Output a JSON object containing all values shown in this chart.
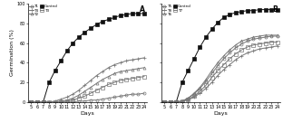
{
  "days": [
    5,
    6,
    7,
    8,
    9,
    10,
    11,
    12,
    13,
    14,
    15,
    16,
    17,
    18,
    19,
    20,
    21,
    22,
    23,
    24
  ],
  "panel_A": {
    "label": "A",
    "series_order": [
      "Control",
      "T4",
      "T2",
      "T3",
      "T1"
    ],
    "series": {
      "T1": [
        0,
        0,
        0,
        0,
        0,
        0,
        0,
        0,
        1,
        1,
        2,
        2,
        3,
        4,
        5,
        6,
        7,
        8,
        8,
        9
      ],
      "T4": [
        0,
        0,
        0,
        0,
        1,
        3,
        5,
        8,
        12,
        17,
        22,
        27,
        31,
        35,
        38,
        40,
        42,
        43,
        44,
        45
      ],
      "T2": [
        0,
        0,
        0,
        0,
        0,
        1,
        2,
        4,
        7,
        11,
        15,
        19,
        23,
        26,
        29,
        31,
        32,
        33,
        34,
        35
      ],
      "T3": [
        0,
        0,
        0,
        0,
        0,
        0,
        1,
        2,
        4,
        6,
        9,
        12,
        15,
        18,
        20,
        22,
        23,
        24,
        25,
        26
      ],
      "Control": [
        0,
        0,
        0,
        20,
        32,
        42,
        52,
        60,
        66,
        71,
        75,
        79,
        82,
        84,
        86,
        88,
        89,
        90,
        90,
        90
      ]
    },
    "series_style": {
      "T1": {
        "marker": "o",
        "filled": false,
        "color": "#777777"
      },
      "T4": {
        "marker": "+",
        "filled": true,
        "color": "#777777"
      },
      "T2": {
        "marker": "^",
        "filled": false,
        "color": "#777777"
      },
      "T3": {
        "marker": "s",
        "filled": false,
        "color": "#777777"
      },
      "Control": {
        "marker": "s",
        "filled": true,
        "color": "#111111"
      }
    },
    "legend_col1": [
      "T1",
      "T2",
      "T3"
    ],
    "legend_col2": [
      "T4",
      "Control"
    ]
  },
  "panel_B": {
    "label": "B",
    "series_order": [
      "Control",
      "T6",
      "T5",
      "T7",
      "T8"
    ],
    "series": {
      "T5": [
        0,
        0,
        0,
        1,
        4,
        8,
        14,
        21,
        29,
        37,
        44,
        50,
        55,
        59,
        62,
        64,
        65,
        66,
        67,
        67
      ],
      "T8": [
        0,
        0,
        0,
        1,
        2,
        5,
        9,
        14,
        20,
        27,
        33,
        38,
        43,
        47,
        50,
        52,
        54,
        55,
        56,
        57
      ],
      "T6": [
        0,
        0,
        0,
        1,
        4,
        9,
        15,
        23,
        32,
        40,
        47,
        53,
        58,
        62,
        64,
        66,
        67,
        68,
        68,
        68
      ],
      "T7": [
        0,
        0,
        0,
        1,
        3,
        6,
        11,
        17,
        25,
        32,
        38,
        44,
        49,
        53,
        56,
        58,
        59,
        60,
        61,
        61
      ],
      "Control": [
        0,
        0,
        0,
        20,
        32,
        44,
        56,
        66,
        74,
        81,
        86,
        89,
        91,
        92,
        93,
        93,
        94,
        94,
        94,
        94
      ]
    },
    "series_style": {
      "T5": {
        "marker": "o",
        "filled": false,
        "color": "#777777"
      },
      "T8": {
        "marker": "+",
        "filled": true,
        "color": "#777777"
      },
      "T6": {
        "marker": "^",
        "filled": false,
        "color": "#777777"
      },
      "T7": {
        "marker": "s",
        "filled": false,
        "color": "#777777"
      },
      "Control": {
        "marker": "s",
        "filled": true,
        "color": "#111111"
      }
    },
    "legend_col1": [
      "T5",
      "T6",
      "T7"
    ],
    "legend_col2": [
      "T8",
      "Control"
    ]
  },
  "ylabel": "Germination (%)",
  "xlabel": "Days",
  "ylim": [
    0,
    100
  ],
  "yticks": [
    0,
    20,
    40,
    60,
    80,
    100
  ],
  "xticks": [
    5,
    6,
    7,
    8,
    9,
    10,
    11,
    12,
    13,
    14,
    15,
    16,
    17,
    18,
    19,
    20,
    21,
    22,
    23,
    24
  ],
  "background_color": "#ffffff",
  "fontsize": 4.5
}
